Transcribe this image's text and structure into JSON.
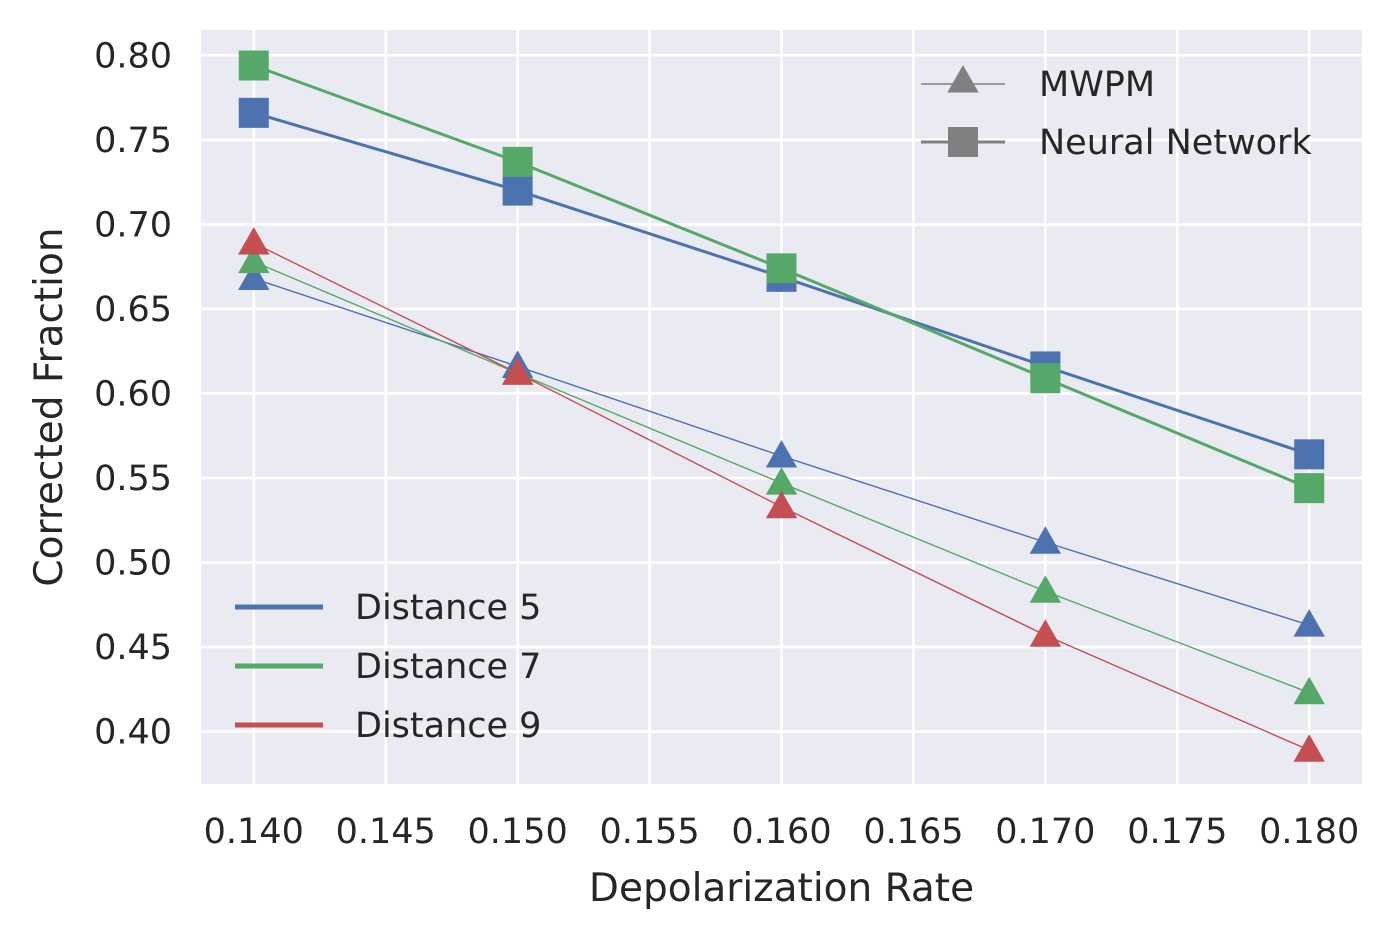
{
  "chart_data": {
    "type": "line",
    "xlabel": "Depolarization Rate",
    "ylabel": "Corrected Fraction",
    "xlim": [
      0.138,
      0.182
    ],
    "ylim": [
      0.369,
      0.815
    ],
    "x_ticks": [
      "0.140",
      "0.145",
      "0.150",
      "0.155",
      "0.160",
      "0.165",
      "0.170",
      "0.175",
      "0.180"
    ],
    "y_ticks": [
      "0.40",
      "0.45",
      "0.50",
      "0.55",
      "0.60",
      "0.65",
      "0.70",
      "0.75",
      "0.80"
    ],
    "grid": true,
    "x": [
      0.14,
      0.15,
      0.16,
      0.17,
      0.18
    ],
    "series": [
      {
        "distance": "Distance 5",
        "method": "MWPM",
        "marker": "triangle",
        "color": "#4c72b0",
        "values": [
          0.668,
          0.616,
          0.563,
          0.512,
          0.463
        ]
      },
      {
        "distance": "Distance 7",
        "method": "MWPM",
        "marker": "triangle",
        "color": "#55a868",
        "values": [
          0.678,
          0.612,
          0.547,
          0.483,
          0.423
        ]
      },
      {
        "distance": "Distance 9",
        "method": "MWPM",
        "marker": "triangle",
        "color": "#c44e52",
        "values": [
          0.689,
          0.612,
          0.533,
          0.457,
          0.389
        ]
      },
      {
        "distance": "Distance 5",
        "method": "Neural Network",
        "marker": "square",
        "color": "#4c72b0",
        "values": [
          0.766,
          0.72,
          0.669,
          0.616,
          0.564
        ]
      },
      {
        "distance": "Distance 7",
        "method": "Neural Network",
        "marker": "square",
        "color": "#55a868",
        "values": [
          0.794,
          0.737,
          0.674,
          0.609,
          0.544
        ]
      }
    ],
    "legend_markers": {
      "position": "top-right",
      "entries": [
        {
          "label": "MWPM",
          "marker": "triangle",
          "color": "#808080"
        },
        {
          "label": "Neural Network",
          "marker": "square",
          "color": "#808080"
        }
      ]
    },
    "legend_colors": {
      "position": "bottom-left",
      "entries": [
        {
          "label": "Distance 5",
          "color": "#4c72b0"
        },
        {
          "label": "Distance 7",
          "color": "#55a868"
        },
        {
          "label": "Distance 9",
          "color": "#c44e52"
        }
      ]
    },
    "colors": {
      "background": "#eaeaf2",
      "grid": "#ffffff",
      "text": "#262626"
    }
  }
}
